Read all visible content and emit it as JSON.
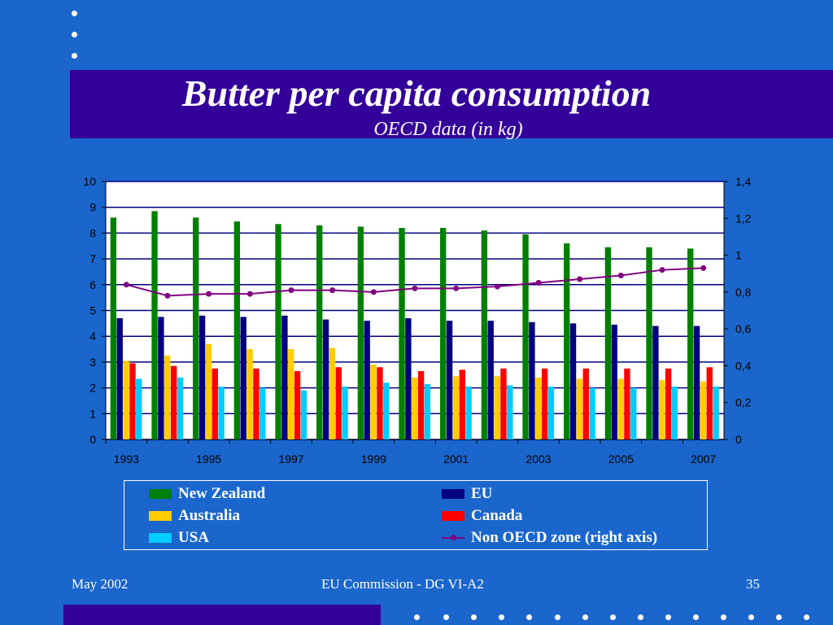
{
  "slide": {
    "title": "Butter per capita consumption",
    "subtitle": "OECD data (in kg)",
    "footer_left": "May 2002",
    "footer_center": "EU Commission - DG VI-A2",
    "footer_right": "35"
  },
  "colors": {
    "background": "#1a66cc",
    "band": "#330099",
    "plot_area": "#ffffff",
    "gridline": "#000080",
    "text": "#ffffff"
  },
  "chart_data": {
    "type": "bar",
    "x": [
      1993,
      1994,
      1995,
      1996,
      1997,
      1998,
      1999,
      2000,
      2001,
      2002,
      2003,
      2004,
      2005,
      2006,
      2007
    ],
    "x_tick_labels": [
      "1993",
      "1995",
      "1997",
      "1999",
      "2001",
      "2003",
      "2005",
      "2007"
    ],
    "ylim": [
      0,
      10
    ],
    "yticks": [
      "0",
      "1",
      "2",
      "3",
      "4",
      "5",
      "6",
      "7",
      "8",
      "9",
      "10"
    ],
    "y2lim": [
      0,
      1.4
    ],
    "y2ticks": [
      "0",
      "0,2",
      "0,4",
      "0,6",
      "0,8",
      "1",
      "1,2",
      "1,4"
    ],
    "grid": true,
    "legend_position": "bottom",
    "series": [
      {
        "name": "New Zealand",
        "type": "bar",
        "axis": "left",
        "color": "#008000",
        "values": [
          8.6,
          8.85,
          8.6,
          8.45,
          8.35,
          8.3,
          8.25,
          8.2,
          8.2,
          8.1,
          7.95,
          7.6,
          7.45,
          7.45,
          7.4
        ]
      },
      {
        "name": "EU",
        "type": "bar",
        "axis": "left",
        "color": "#000080",
        "values": [
          4.7,
          4.75,
          4.8,
          4.75,
          4.8,
          4.65,
          4.6,
          4.7,
          4.6,
          4.6,
          4.55,
          4.5,
          4.45,
          4.4,
          4.4
        ]
      },
      {
        "name": "Australia",
        "type": "bar",
        "axis": "left",
        "color": "#ffcc00",
        "values": [
          3.05,
          3.25,
          3.7,
          3.5,
          3.5,
          3.55,
          2.9,
          2.4,
          2.45,
          2.45,
          2.4,
          2.35,
          2.35,
          2.3,
          2.25
        ]
      },
      {
        "name": "Canada",
        "type": "bar",
        "axis": "left",
        "color": "#ff0000",
        "values": [
          2.95,
          2.85,
          2.75,
          2.75,
          2.65,
          2.8,
          2.8,
          2.65,
          2.7,
          2.75,
          2.75,
          2.75,
          2.75,
          2.75,
          2.8
        ]
      },
      {
        "name": "USA",
        "type": "bar",
        "axis": "left",
        "color": "#00ccff",
        "values": [
          2.35,
          2.4,
          2.05,
          2.0,
          1.9,
          2.05,
          2.2,
          2.15,
          2.05,
          2.1,
          2.05,
          2.0,
          2.0,
          2.05,
          2.05
        ]
      },
      {
        "name": "Non OECD zone (right axis)",
        "type": "line",
        "axis": "right",
        "color": "#800080",
        "values": [
          0.84,
          0.78,
          0.79,
          0.79,
          0.81,
          0.81,
          0.8,
          0.82,
          0.82,
          0.83,
          0.85,
          0.87,
          0.89,
          0.92,
          0.93
        ]
      }
    ]
  }
}
